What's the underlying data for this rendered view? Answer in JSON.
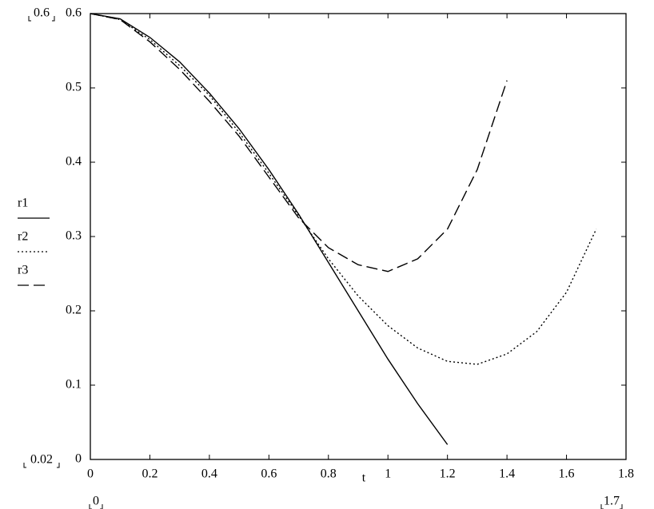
{
  "chart_data": {
    "type": "line",
    "x_label": "t",
    "xlim": [
      0,
      1.8
    ],
    "xticks": [
      0,
      0.2,
      0.4,
      0.6,
      0.8,
      1,
      1.2,
      1.4,
      1.6,
      1.8
    ],
    "ylim": [
      0,
      0.6
    ],
    "yticks": [
      0,
      0.1,
      0.2,
      0.3,
      0.4,
      0.5,
      0.6
    ],
    "y_limit_labels": [
      "0.6",
      "0.02"
    ],
    "x_limit_labels": [
      "0",
      "1.7"
    ],
    "series": [
      {
        "name": "r1",
        "color": "#000000",
        "dash": "none",
        "x": [
          0,
          0.1,
          0.2,
          0.3,
          0.4,
          0.5,
          0.6,
          0.7,
          0.8,
          0.9,
          1.0,
          1.1,
          1.2
        ],
        "values": [
          0.6,
          0.593,
          0.568,
          0.535,
          0.493,
          0.445,
          0.39,
          0.33,
          0.265,
          0.2,
          0.135,
          0.075,
          0.02
        ]
      },
      {
        "name": "r2",
        "color": "#000000",
        "dash": "2 3",
        "x": [
          0,
          0.1,
          0.2,
          0.3,
          0.4,
          0.5,
          0.6,
          0.7,
          0.8,
          0.9,
          1.0,
          1.1,
          1.2,
          1.3,
          1.4,
          1.5,
          1.6,
          1.7
        ],
        "values": [
          0.6,
          0.592,
          0.565,
          0.53,
          0.49,
          0.44,
          0.385,
          0.328,
          0.27,
          0.22,
          0.18,
          0.15,
          0.132,
          0.128,
          0.142,
          0.172,
          0.225,
          0.31
        ]
      },
      {
        "name": "r3",
        "color": "#000000",
        "dash": "14 6",
        "x": [
          0,
          0.1,
          0.2,
          0.3,
          0.4,
          0.5,
          0.6,
          0.7,
          0.8,
          0.9,
          1.0,
          1.1,
          1.2,
          1.3,
          1.4
        ],
        "values": [
          0.6,
          0.592,
          0.562,
          0.525,
          0.482,
          0.435,
          0.38,
          0.325,
          0.285,
          0.262,
          0.253,
          0.27,
          0.31,
          0.39,
          0.51
        ]
      }
    ]
  }
}
